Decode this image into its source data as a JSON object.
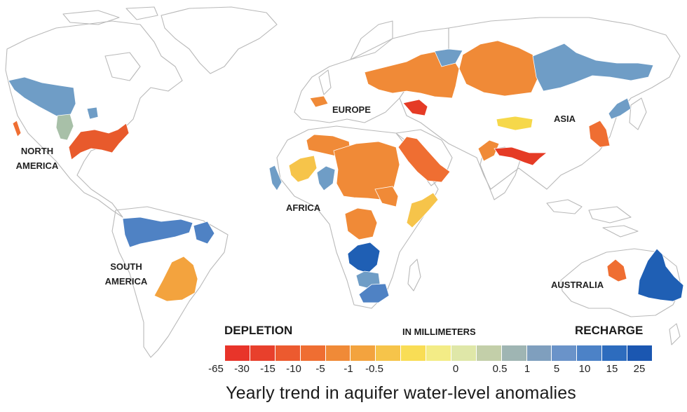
{
  "regions": {
    "north_america": [
      "NORTH",
      "AMERICA"
    ],
    "south_america": [
      "SOUTH",
      "AMERICA"
    ],
    "europe": "EUROPE",
    "asia": "ASIA",
    "africa": "AFRICA",
    "australia": "AUSTRALIA"
  },
  "legend": {
    "left_label": "DEPLETION",
    "center_label": "IN MILLIMETERS",
    "right_label": "RECHARGE",
    "colors": [
      "#e8342a",
      "#e8402c",
      "#ec5a2f",
      "#ef6e32",
      "#f08a37",
      "#f3a33e",
      "#f6c44a",
      "#f9dd55",
      "#f3ec86",
      "#dfe7a8",
      "#c3cfa9",
      "#9fb5b3",
      "#7f9fbe",
      "#6a93c9",
      "#4c82c7",
      "#2d6cbe",
      "#1b57b1"
    ],
    "ticks": [
      "-65",
      "-30",
      "-15",
      "-10",
      "-5",
      "-1",
      "-0.5",
      "0",
      "0.5",
      "1",
      "5",
      "10",
      "15",
      "25"
    ]
  },
  "caption": "Yearly trend in aquifer water-level anomalies"
}
